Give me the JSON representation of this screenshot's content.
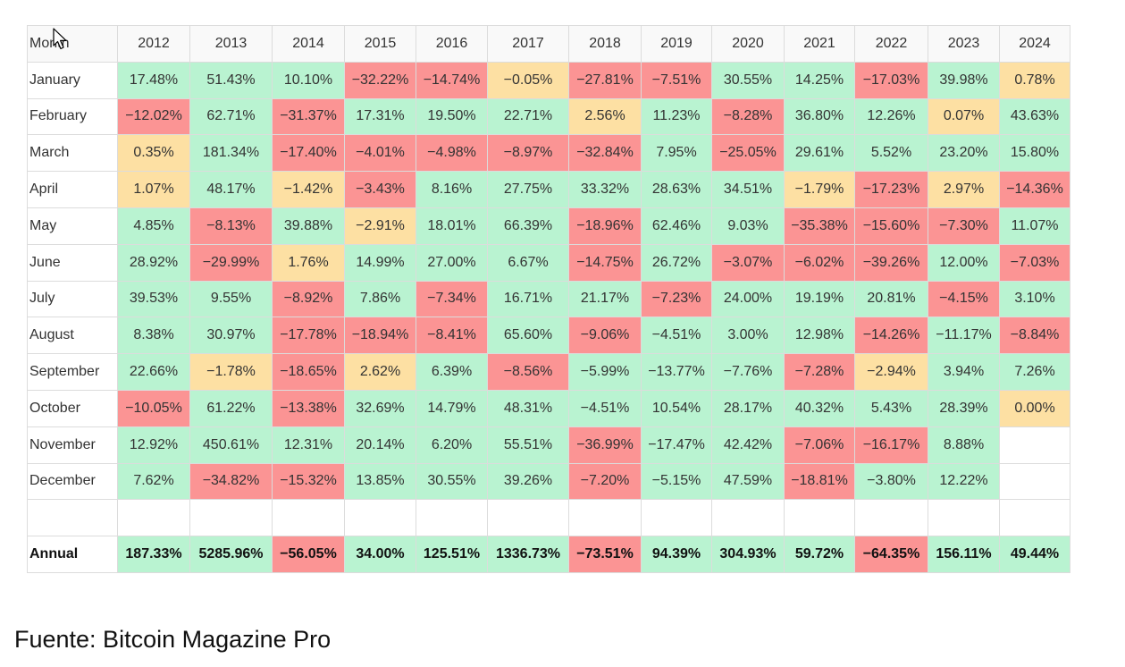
{
  "colors": {
    "positive": "#b9f3d1",
    "negative": "#fb9494",
    "neutral": "#fde0a3",
    "grid": "#dcdcdc"
  },
  "chart_data": {
    "type": "heatmap",
    "corner_label": "Month",
    "columns": [
      "2012",
      "2013",
      "2014",
      "2015",
      "2016",
      "2017",
      "2018",
      "2019",
      "2020",
      "2021",
      "2022",
      "2023",
      "2024"
    ],
    "rows": [
      {
        "label": "January",
        "values": [
          "17.48%",
          "51.43%",
          "10.10%",
          "−32.22%",
          "−14.74%",
          "−0.05%",
          "−27.81%",
          "−7.51%",
          "30.55%",
          "14.25%",
          "−17.03%",
          "39.98%",
          "0.78%"
        ],
        "tones": [
          "g",
          "g",
          "g",
          "r",
          "r",
          "y",
          "r",
          "r",
          "g",
          "g",
          "r",
          "g",
          "y"
        ]
      },
      {
        "label": "February",
        "values": [
          "−12.02%",
          "62.71%",
          "−31.37%",
          "17.31%",
          "19.50%",
          "22.71%",
          "2.56%",
          "11.23%",
          "−8.28%",
          "36.80%",
          "12.26%",
          "0.07%",
          "43.63%"
        ],
        "tones": [
          "r",
          "g",
          "r",
          "g",
          "g",
          "g",
          "y",
          "g",
          "r",
          "g",
          "g",
          "y",
          "g"
        ]
      },
      {
        "label": "March",
        "values": [
          "0.35%",
          "181.34%",
          "−17.40%",
          "−4.01%",
          "−4.98%",
          "−8.97%",
          "−32.84%",
          "7.95%",
          "−25.05%",
          "29.61%",
          "5.52%",
          "23.20%",
          "15.80%"
        ],
        "tones": [
          "y",
          "g",
          "r",
          "r",
          "r",
          "r",
          "r",
          "g",
          "r",
          "g",
          "g",
          "g",
          "g"
        ]
      },
      {
        "label": "April",
        "values": [
          "1.07%",
          "48.17%",
          "−1.42%",
          "−3.43%",
          "8.16%",
          "27.75%",
          "33.32%",
          "28.63%",
          "34.51%",
          "−1.79%",
          "−17.23%",
          "2.97%",
          "−14.36%"
        ],
        "tones": [
          "y",
          "g",
          "y",
          "r",
          "g",
          "g",
          "g",
          "g",
          "g",
          "y",
          "r",
          "y",
          "r"
        ]
      },
      {
        "label": "May",
        "values": [
          "4.85%",
          "−8.13%",
          "39.88%",
          "−2.91%",
          "18.01%",
          "66.39%",
          "−18.96%",
          "62.46%",
          "9.03%",
          "−35.38%",
          "−15.60%",
          "−7.30%",
          "11.07%"
        ],
        "tones": [
          "g",
          "r",
          "g",
          "y",
          "g",
          "g",
          "r",
          "g",
          "g",
          "r",
          "r",
          "r",
          "g"
        ]
      },
      {
        "label": "June",
        "values": [
          "28.92%",
          "−29.99%",
          "1.76%",
          "14.99%",
          "27.00%",
          "6.67%",
          "−14.75%",
          "26.72%",
          "−3.07%",
          "−6.02%",
          "−39.26%",
          "12.00%",
          "−7.03%"
        ],
        "tones": [
          "g",
          "r",
          "y",
          "g",
          "g",
          "g",
          "r",
          "g",
          "r",
          "r",
          "r",
          "g",
          "r"
        ]
      },
      {
        "label": "July",
        "values": [
          "39.53%",
          "9.55%",
          "−8.92%",
          "7.86%",
          "−7.34%",
          "16.71%",
          "21.17%",
          "−7.23%",
          "24.00%",
          "19.19%",
          "20.81%",
          "−4.15%",
          "3.10%"
        ],
        "tones": [
          "g",
          "g",
          "r",
          "g",
          "r",
          "g",
          "g",
          "r",
          "g",
          "g",
          "g",
          "r",
          "g"
        ]
      },
      {
        "label": "August",
        "values": [
          "8.38%",
          "30.97%",
          "−17.78%",
          "−18.94%",
          "−8.41%",
          "65.60%",
          "−9.06%",
          "−4.51%",
          "3.00%",
          "12.98%",
          "−14.26%",
          "−11.17%",
          "−8.84%"
        ],
        "tones": [
          "g",
          "g",
          "r",
          "r",
          "r",
          "g",
          "r",
          "g",
          "g",
          "g",
          "r",
          "g",
          "r"
        ]
      },
      {
        "label": "September",
        "values": [
          "22.66%",
          "−1.78%",
          "−18.65%",
          "2.62%",
          "6.39%",
          "−8.56%",
          "−5.99%",
          "−13.77%",
          "−7.76%",
          "−7.28%",
          "−2.94%",
          "3.94%",
          "7.26%"
        ],
        "tones": [
          "g",
          "y",
          "r",
          "y",
          "g",
          "r",
          "g",
          "g",
          "g",
          "r",
          "y",
          "g",
          "g"
        ]
      },
      {
        "label": "October",
        "values": [
          "−10.05%",
          "61.22%",
          "−13.38%",
          "32.69%",
          "14.79%",
          "48.31%",
          "−4.51%",
          "10.54%",
          "28.17%",
          "40.32%",
          "5.43%",
          "28.39%",
          "0.00%"
        ],
        "tones": [
          "r",
          "g",
          "r",
          "g",
          "g",
          "g",
          "g",
          "g",
          "g",
          "g",
          "g",
          "g",
          "y"
        ]
      },
      {
        "label": "November",
        "values": [
          "12.92%",
          "450.61%",
          "12.31%",
          "20.14%",
          "6.20%",
          "55.51%",
          "−36.99%",
          "−17.47%",
          "42.42%",
          "−7.06%",
          "−16.17%",
          "8.88%",
          ""
        ],
        "tones": [
          "g",
          "g",
          "g",
          "g",
          "g",
          "g",
          "r",
          "g",
          "g",
          "r",
          "r",
          "g",
          "e"
        ]
      },
      {
        "label": "December",
        "values": [
          "7.62%",
          "−34.82%",
          "−15.32%",
          "13.85%",
          "30.55%",
          "39.26%",
          "−7.20%",
          "−5.15%",
          "47.59%",
          "−18.81%",
          "−3.80%",
          "12.22%",
          ""
        ],
        "tones": [
          "g",
          "r",
          "r",
          "g",
          "g",
          "g",
          "r",
          "g",
          "g",
          "r",
          "g",
          "g",
          "e"
        ]
      },
      {
        "label": "",
        "values": [
          "",
          "",
          "",
          "",
          "",
          "",
          "",
          "",
          "",
          "",
          "",
          "",
          ""
        ],
        "tones": [
          "e",
          "e",
          "e",
          "e",
          "e",
          "e",
          "e",
          "e",
          "e",
          "e",
          "e",
          "e",
          "e"
        ]
      },
      {
        "label": "Annual",
        "values": [
          "187.33%",
          "5285.96%",
          "−56.05%",
          "34.00%",
          "125.51%",
          "1336.73%",
          "−73.51%",
          "94.39%",
          "304.93%",
          "59.72%",
          "−64.35%",
          "156.11%",
          "49.44%"
        ],
        "tones": [
          "g",
          "g",
          "r",
          "g",
          "g",
          "g",
          "r",
          "g",
          "g",
          "g",
          "r",
          "g",
          "g"
        ],
        "emphasis": true
      }
    ]
  },
  "footer": {
    "source": "Fuente: Bitcoin Magazine Pro"
  },
  "cursor_icon": "mouse-pointer-icon"
}
